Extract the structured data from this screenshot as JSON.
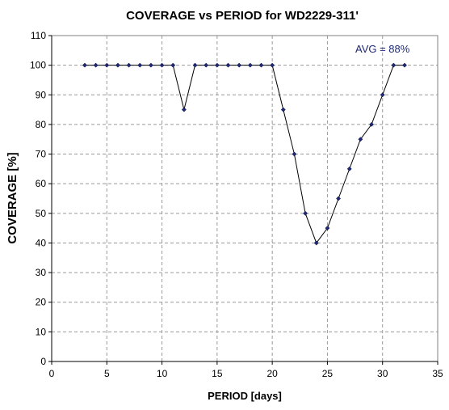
{
  "chart_data": {
    "type": "line",
    "title": "COVERAGE vs PERIOD for WD2229-311'",
    "xlabel": "PERIOD [days]",
    "ylabel": "COVERAGE [%]",
    "xlim": [
      0,
      35
    ],
    "ylim": [
      0,
      110
    ],
    "xticks": [
      0,
      5,
      10,
      15,
      20,
      25,
      30,
      35
    ],
    "yticks": [
      0,
      10,
      20,
      30,
      40,
      50,
      60,
      70,
      80,
      90,
      100,
      110
    ],
    "grid": true,
    "annotation": "AVG = 88%",
    "series": [
      {
        "color": "#1e2a78",
        "x": [
          3,
          4,
          5,
          6,
          7,
          8,
          9,
          10,
          11,
          12,
          13,
          14,
          15,
          16,
          17,
          18,
          19,
          20,
          21,
          22,
          23,
          24,
          25,
          26,
          27,
          28,
          29,
          30,
          31,
          32
        ],
        "y": [
          100,
          100,
          100,
          100,
          100,
          100,
          100,
          100,
          100,
          85,
          100,
          100,
          100,
          100,
          100,
          100,
          100,
          100,
          85,
          70,
          50,
          40,
          45,
          55,
          65,
          75,
          80,
          90,
          100,
          100
        ]
      }
    ]
  }
}
